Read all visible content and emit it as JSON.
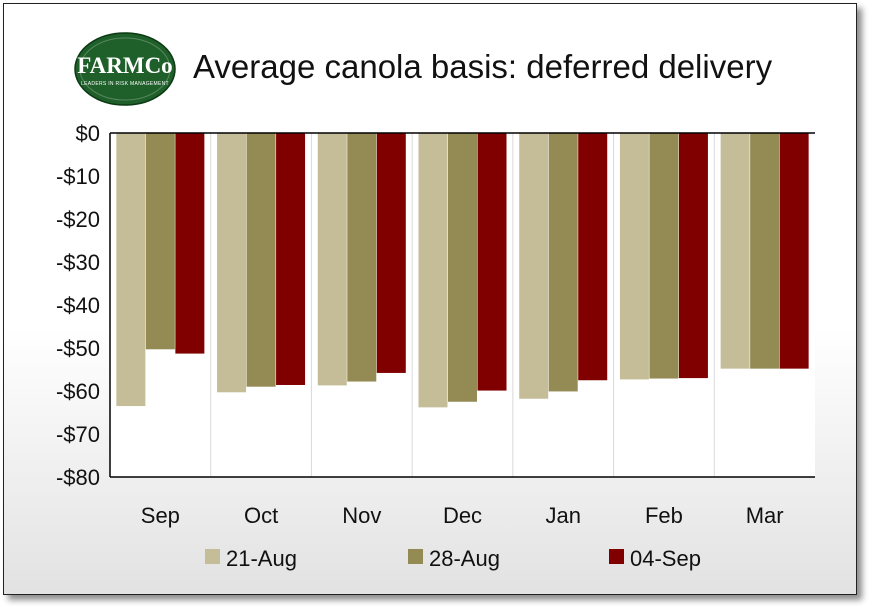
{
  "header": {
    "logo": {
      "main_text": "FARMCo",
      "tagline": "LEADERS IN RISK MANAGEMENT"
    },
    "title": "Average canola basis: deferred delivery"
  },
  "chart_data": {
    "type": "bar",
    "title": "Average canola basis: deferred delivery",
    "xlabel": "",
    "ylabel": "",
    "ylim": [
      -80,
      0
    ],
    "yticks": [
      0,
      -10,
      -20,
      -30,
      -40,
      -50,
      -60,
      -70,
      -80
    ],
    "ytick_labels": [
      "$0",
      "-$10",
      "-$20",
      "-$30",
      "-$40",
      "-$50",
      "-$60",
      "-$70",
      "-$80"
    ],
    "categories": [
      "Sep",
      "Oct",
      "Nov",
      "Dec",
      "Jan",
      "Feb",
      "Mar"
    ],
    "series": [
      {
        "name": "21-Aug",
        "color": "#c4bd97",
        "values": [
          -63.5,
          -60.3,
          -58.7,
          -63.8,
          -61.8,
          -57.3,
          -54.8
        ]
      },
      {
        "name": "28-Aug",
        "color": "#948a54",
        "values": [
          -50.3,
          -59.0,
          -57.8,
          -62.5,
          -60.1,
          -57.1,
          -54.8
        ]
      },
      {
        "name": "04-Sep",
        "color": "#800000",
        "values": [
          -51.3,
          -58.6,
          -55.8,
          -59.9,
          -57.5,
          -57.0,
          -54.8
        ]
      }
    ],
    "grid": {
      "vertical": true,
      "horizontal": false
    },
    "legend": "bottom"
  }
}
